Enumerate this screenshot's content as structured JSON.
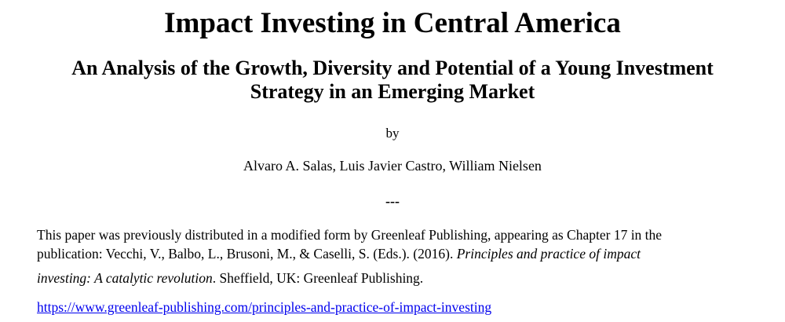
{
  "page": {
    "title": "Impact Investing in Central America",
    "subtitle": {
      "line1": "An Analysis of the Growth, Diversity and Potential of a Young Investment",
      "line2": "Strategy in an Emerging Market"
    },
    "byline": "by",
    "authors": "Alvaro A. Salas, Luis Javier Castro, William Nielsen",
    "separator": "---",
    "note": {
      "line1": "This paper was previously distributed in a modified form by Greenleaf Publishing, appearing as Chapter 17 in the",
      "line2_normal": "publication: Vecchi, V., Balbo, L., Brusoni, M., & Caselli, S. (Eds.). (2016). ",
      "line2_italic": "Principles and practice of impact",
      "line3_italic": "investing: A catalytic revolution",
      "line3_normal": ". Sheffield, UK: Greenleaf Publishing."
    },
    "link": {
      "text": "https://www.greenleaf-publishing.com/principles-and-practice-of-impact-investing"
    },
    "colors": {
      "text": "#000000",
      "background": "#FFFFFF",
      "link": "#0000EE"
    }
  }
}
